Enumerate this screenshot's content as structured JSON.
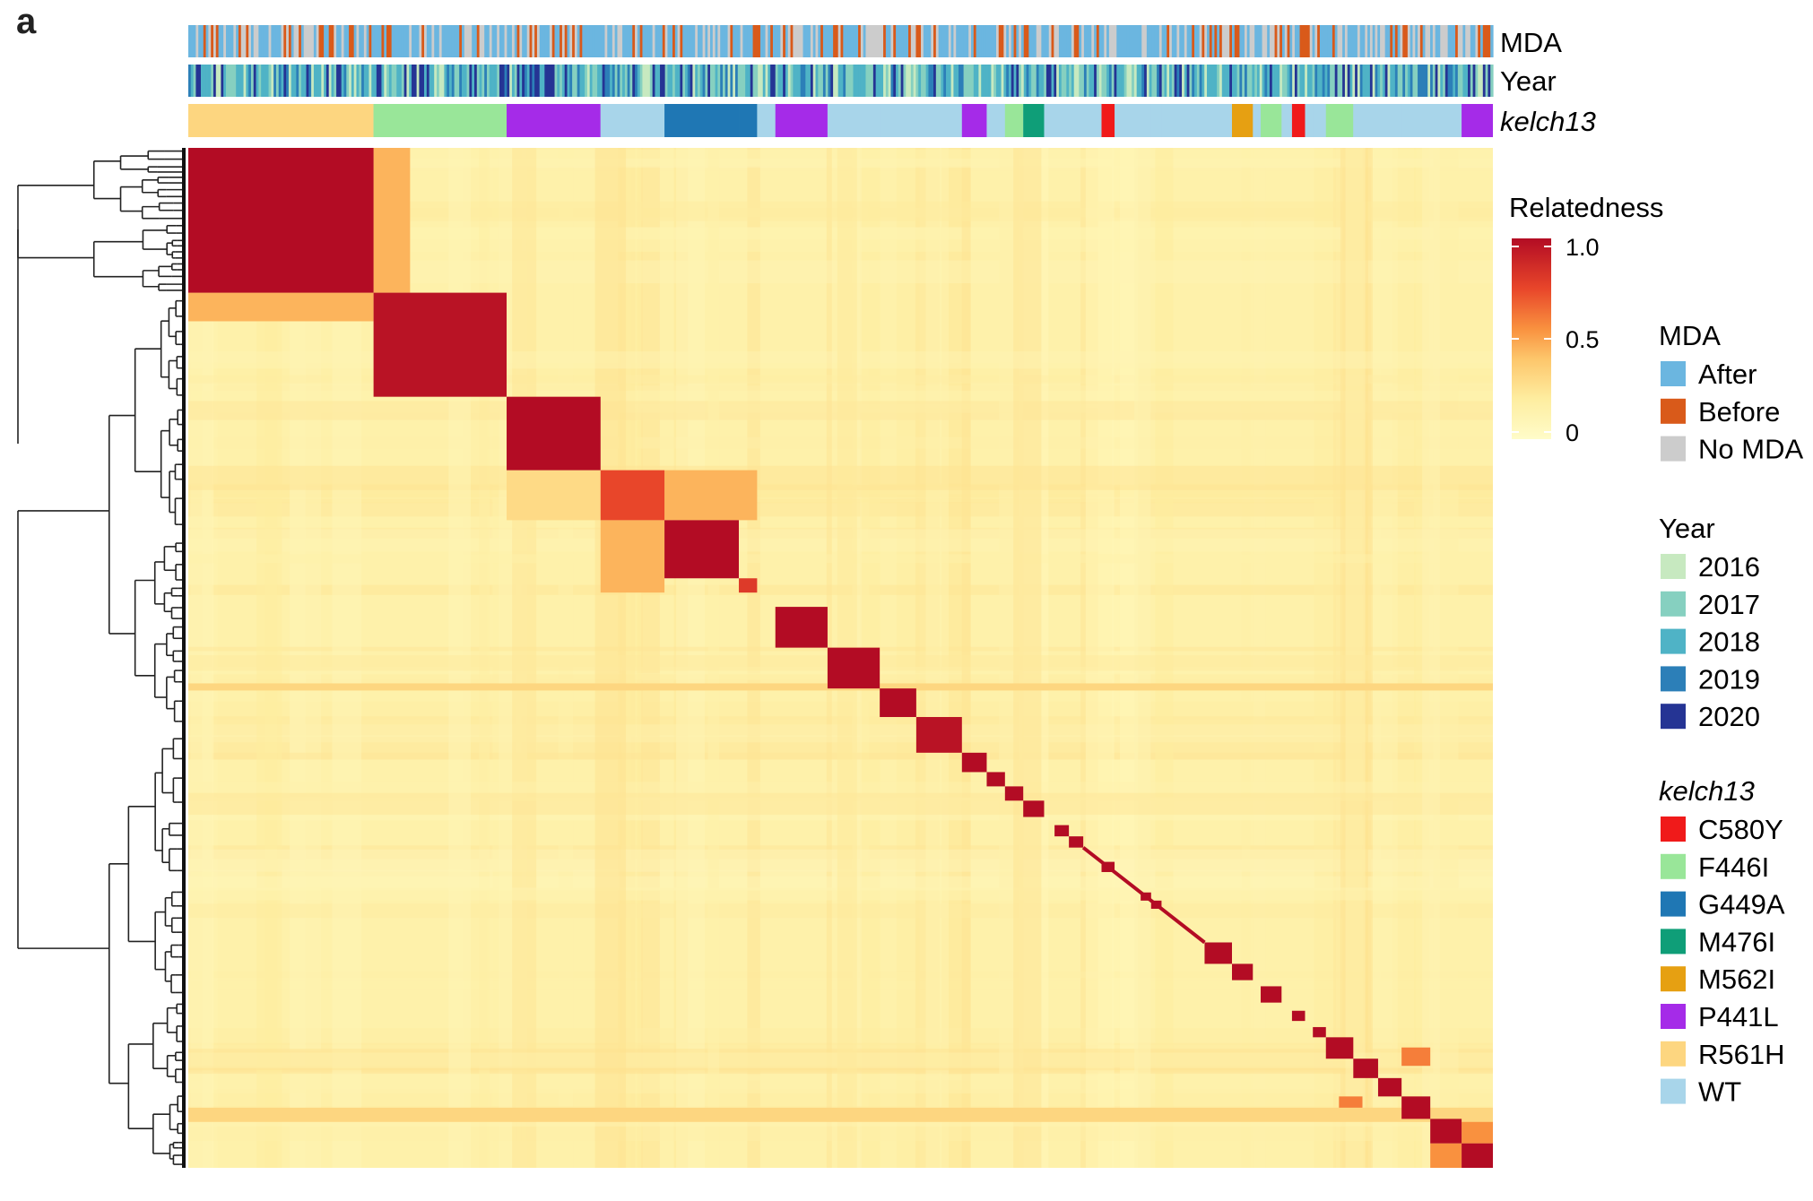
{
  "panel_label": "a",
  "chart_data": {
    "type": "heatmap",
    "title": "",
    "annotation_tracks": [
      "MDA",
      "Year",
      "kelch13"
    ],
    "colorbar": {
      "title": "Relatedness",
      "ticks": [
        "1.0",
        "0.5",
        "0"
      ],
      "range": [
        0,
        1
      ],
      "colors": [
        "#fffcc9",
        "#feeda0",
        "#fdc66b",
        "#f9913f",
        "#e8462a",
        "#b30c24"
      ]
    },
    "legends": [
      {
        "title": "MDA",
        "italic": false,
        "items": [
          {
            "label": "After",
            "color": "#6bb6e0"
          },
          {
            "label": "Before",
            "color": "#d95a1a"
          },
          {
            "label": "No MDA",
            "color": "#cccccc"
          }
        ]
      },
      {
        "title": "Year",
        "italic": false,
        "items": [
          {
            "label": "2016",
            "color": "#c7e9c0"
          },
          {
            "label": "2017",
            "color": "#86d0c0"
          },
          {
            "label": "2018",
            "color": "#4fb3c6"
          },
          {
            "label": "2019",
            "color": "#2c7fb8"
          },
          {
            "label": "2020",
            "color": "#253494"
          }
        ]
      },
      {
        "title": "kelch13",
        "italic": true,
        "items": [
          {
            "label": "C580Y",
            "color": "#f01a1a"
          },
          {
            "label": "F446I",
            "color": "#99e699"
          },
          {
            "label": "G449A",
            "color": "#1f77b4"
          },
          {
            "label": "M476I",
            "color": "#0f9e78"
          },
          {
            "label": "M562I",
            "color": "#e6a012"
          },
          {
            "label": "P441L",
            "color": "#a52be8"
          },
          {
            "label": "R561H",
            "color": "#fdd680"
          },
          {
            "label": "WT",
            "color": "#a8d5ea"
          }
        ]
      }
    ],
    "clusters": [
      {
        "start": 0.0,
        "end": 0.142,
        "value": 1.0,
        "kelch13": "R561H"
      },
      {
        "start": 0.142,
        "end": 0.244,
        "value": 0.97,
        "kelch13": "F446I"
      },
      {
        "start": 0.244,
        "end": 0.316,
        "value": 1.0,
        "kelch13": "P441L"
      },
      {
        "start": 0.316,
        "end": 0.365,
        "value": 0.75,
        "kelch13": "WT"
      },
      {
        "start": 0.365,
        "end": 0.422,
        "value": 1.0,
        "kelch13": "G449A"
      },
      {
        "start": 0.422,
        "end": 0.436,
        "value": 0.8,
        "kelch13": "G449A"
      },
      {
        "start": 0.45,
        "end": 0.49,
        "value": 1.0,
        "kelch13": "P441L"
      },
      {
        "start": 0.49,
        "end": 0.53,
        "value": 1.0,
        "kelch13": "WT"
      },
      {
        "start": 0.53,
        "end": 0.558,
        "value": 1.0,
        "kelch13": "WT"
      },
      {
        "start": 0.558,
        "end": 0.593,
        "value": 0.97,
        "kelch13": "WT"
      },
      {
        "start": 0.593,
        "end": 0.612,
        "value": 1.0,
        "kelch13": "P441L"
      },
      {
        "start": 0.612,
        "end": 0.626,
        "value": 1.0,
        "kelch13": "WT"
      },
      {
        "start": 0.626,
        "end": 0.64,
        "value": 1.0,
        "kelch13": "F446I"
      },
      {
        "start": 0.64,
        "end": 0.656,
        "value": 1.0,
        "kelch13": "M476I"
      },
      {
        "start": 0.664,
        "end": 0.675,
        "value": 1.0,
        "kelch13": "WT"
      },
      {
        "start": 0.675,
        "end": 0.686,
        "value": 1.0,
        "kelch13": "WT"
      },
      {
        "start": 0.7,
        "end": 0.71,
        "value": 1.0,
        "kelch13": "C580Y"
      },
      {
        "start": 0.73,
        "end": 0.738,
        "value": 1.0,
        "kelch13": "WT"
      },
      {
        "start": 0.738,
        "end": 0.746,
        "value": 1.0,
        "kelch13": "WT"
      },
      {
        "start": 0.779,
        "end": 0.8,
        "value": 1.0,
        "kelch13": "WT"
      },
      {
        "start": 0.8,
        "end": 0.816,
        "value": 1.0,
        "kelch13": "M562I"
      },
      {
        "start": 0.822,
        "end": 0.838,
        "value": 1.0,
        "kelch13": "F446I"
      },
      {
        "start": 0.846,
        "end": 0.856,
        "value": 1.0,
        "kelch13": "C580Y"
      },
      {
        "start": 0.862,
        "end": 0.872,
        "value": 1.0,
        "kelch13": "WT"
      },
      {
        "start": 0.872,
        "end": 0.893,
        "value": 1.0,
        "kelch13": "F446I"
      },
      {
        "start": 0.893,
        "end": 0.912,
        "value": 1.0,
        "kelch13": "WT"
      },
      {
        "start": 0.912,
        "end": 0.93,
        "value": 1.0,
        "kelch13": "WT"
      },
      {
        "start": 0.93,
        "end": 0.952,
        "value": 1.0,
        "kelch13": "WT"
      },
      {
        "start": 0.952,
        "end": 0.976,
        "value": 1.0,
        "kelch13": "WT"
      },
      {
        "start": 0.976,
        "end": 1.0,
        "value": 1.0,
        "kelch13": "P441L"
      }
    ]
  }
}
